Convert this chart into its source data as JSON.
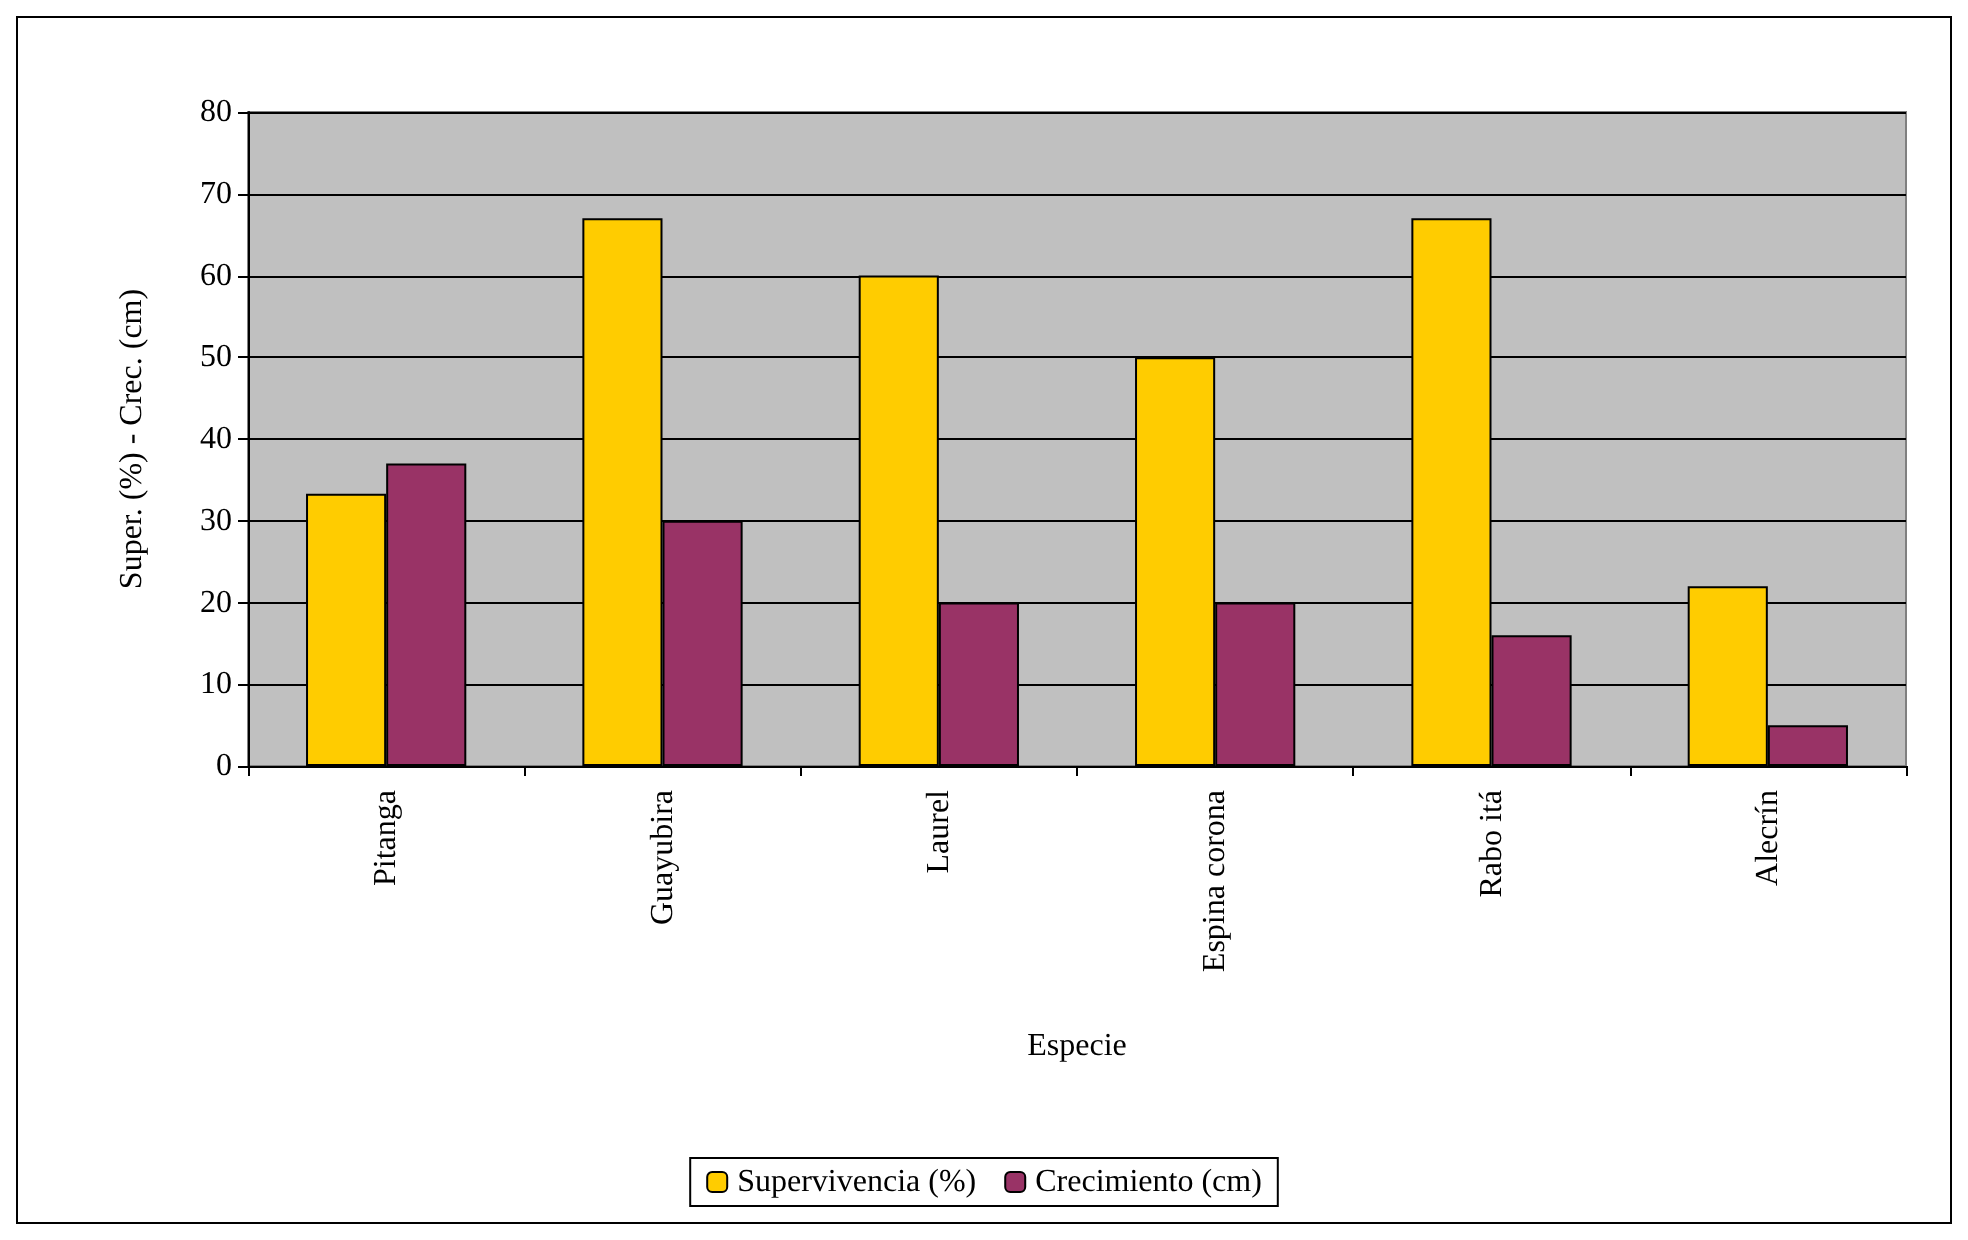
{
  "chart_data": {
    "type": "bar",
    "xlabel": "Especie",
    "ylabel": "Super. (%) - Crec. (cm)",
    "categories": [
      "Pitanga",
      "Guayubira",
      "Laurel",
      "Espina corona",
      "Rabo itá",
      "Alecrín"
    ],
    "series": [
      {
        "name": "Supervivencia (%)",
        "color": "#ffcc00",
        "values": [
          33.3,
          67,
          60,
          50,
          67,
          22
        ]
      },
      {
        "name": "Crecimiento (cm)",
        "color": "#993366",
        "values": [
          37,
          30,
          20,
          20,
          16,
          5
        ]
      }
    ],
    "ylim": [
      0,
      80
    ],
    "yticks": [
      0,
      10,
      20,
      30,
      40,
      50,
      60,
      70,
      80
    ],
    "grid": "y",
    "legend": "bottom"
  }
}
